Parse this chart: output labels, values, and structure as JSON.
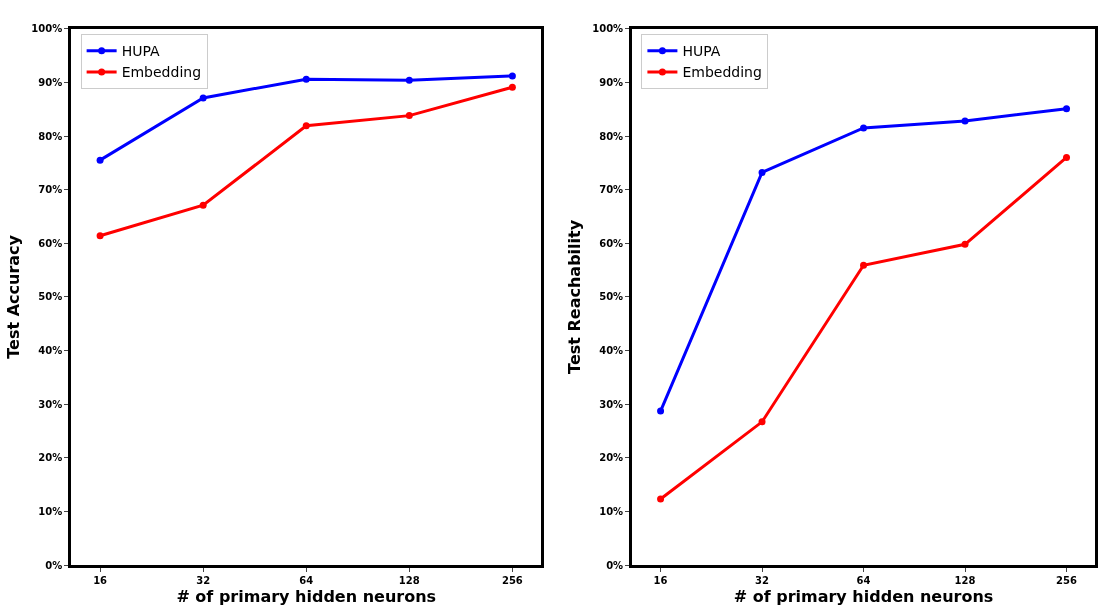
{
  "chart_data": [
    {
      "type": "line",
      "xlabel": "# of primary hidden neurons",
      "ylabel": "Test Accuracy",
      "categories": [
        "16",
        "32",
        "64",
        "128",
        "256"
      ],
      "ylim": [
        0,
        100
      ],
      "yticks": [
        {
          "value": 0,
          "label": "0%"
        },
        {
          "value": 10,
          "label": "10%"
        },
        {
          "value": 20,
          "label": "20%"
        },
        {
          "value": 30,
          "label": "30%"
        },
        {
          "value": 40,
          "label": "40%"
        },
        {
          "value": 50,
          "label": "50%"
        },
        {
          "value": 60,
          "label": "60%"
        },
        {
          "value": 70,
          "label": "70%"
        },
        {
          "value": 80,
          "label": "80%"
        },
        {
          "value": 90,
          "label": "90%"
        },
        {
          "value": 100,
          "label": "100%"
        }
      ],
      "legend": "top left",
      "marker": "circle",
      "line_style": "solid",
      "series": [
        {
          "name": "HUPA",
          "color": "#0000ff",
          "values": [
            75.5,
            87.1,
            90.6,
            90.4,
            91.2
          ]
        },
        {
          "name": "Embedding",
          "color": "#ff0000",
          "values": [
            61.4,
            67.1,
            81.9,
            83.8,
            89.1
          ]
        }
      ]
    },
    {
      "type": "line",
      "xlabel": "# of primary hidden neurons",
      "ylabel": "Test Reachability",
      "categories": [
        "16",
        "32",
        "64",
        "128",
        "256"
      ],
      "ylim": [
        0,
        100
      ],
      "yticks": [
        {
          "value": 0,
          "label": "0%"
        },
        {
          "value": 10,
          "label": "10%"
        },
        {
          "value": 20,
          "label": "20%"
        },
        {
          "value": 30,
          "label": "30%"
        },
        {
          "value": 40,
          "label": "40%"
        },
        {
          "value": 50,
          "label": "50%"
        },
        {
          "value": 60,
          "label": "60%"
        },
        {
          "value": 70,
          "label": "70%"
        },
        {
          "value": 80,
          "label": "80%"
        },
        {
          "value": 90,
          "label": "90%"
        },
        {
          "value": 100,
          "label": "100%"
        }
      ],
      "legend": "top left",
      "marker": "circle",
      "line_style": "solid",
      "series": [
        {
          "name": "HUPA",
          "color": "#0000ff",
          "values": [
            28.7,
            73.2,
            81.5,
            82.8,
            85.1
          ]
        },
        {
          "name": "Embedding",
          "color": "#ff0000",
          "values": [
            12.3,
            26.7,
            55.9,
            59.8,
            76.0
          ]
        }
      ]
    }
  ]
}
